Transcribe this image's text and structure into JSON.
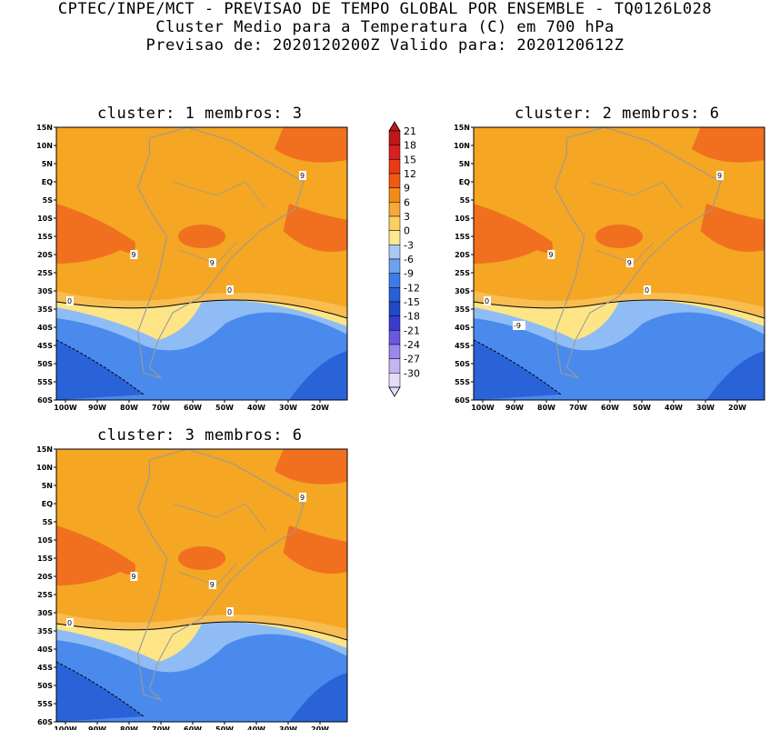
{
  "header": {
    "line1": "CPTEC/INPE/MCT - PREVISAO DE TEMPO GLOBAL POR ENSEMBLE - TQ0126L028",
    "line2": "Cluster Medio para a Temperatura (C) em 700 hPa",
    "line3": "Previsao de: 2020120200Z   Valido para: 2020120612Z"
  },
  "lat_ticks": [
    "15N",
    "10N",
    "5N",
    "EQ",
    "5S",
    "10S",
    "15S",
    "20S",
    "25S",
    "30S",
    "35S",
    "40S",
    "45S",
    "50S",
    "55S",
    "60S"
  ],
  "lon_ticks": [
    "100W",
    "90W",
    "80W",
    "70W",
    "60W",
    "50W",
    "40W",
    "30W",
    "20W"
  ],
  "panels": [
    {
      "title": "cluster: 1   membros: 3",
      "labels": [
        "9",
        "9",
        "9",
        "0",
        "0"
      ]
    },
    {
      "title": "cluster: 2   membros: 6",
      "labels": [
        "9",
        "9",
        "9",
        "0",
        "0",
        "-9"
      ]
    },
    {
      "title": "cluster: 3   membros: 6",
      "labels": [
        "9",
        "9",
        "9",
        "0",
        "0"
      ]
    }
  ],
  "colorbar": {
    "labels": [
      "21",
      "18",
      "15",
      "12",
      "9",
      "6",
      "3",
      "0",
      "-3",
      "-6",
      "-9",
      "-12",
      "-15",
      "-18",
      "-21",
      "-24",
      "-27",
      "-30"
    ],
    "colors": [
      "#c01818",
      "#d82020",
      "#e83a14",
      "#f05a10",
      "#f58a18",
      "#f8a838",
      "#fbd060",
      "#fbe890",
      "#aac8f4",
      "#6ca0f0",
      "#3c7ce8",
      "#2860d8",
      "#2048c8",
      "#3a3ad0",
      "#6a58e0",
      "#9a88ec",
      "#c4b4f4",
      "#e4ddfa"
    ]
  },
  "colors": {
    "warm": "#f5a623",
    "hot": "#f07020",
    "light_orange": "#f9bc50",
    "yellow": "#fde586",
    "light_blue": "#8fbcf5",
    "blue": "#4a8aec",
    "deep_blue": "#2a62d8",
    "land_line": "#9a9a9a"
  }
}
